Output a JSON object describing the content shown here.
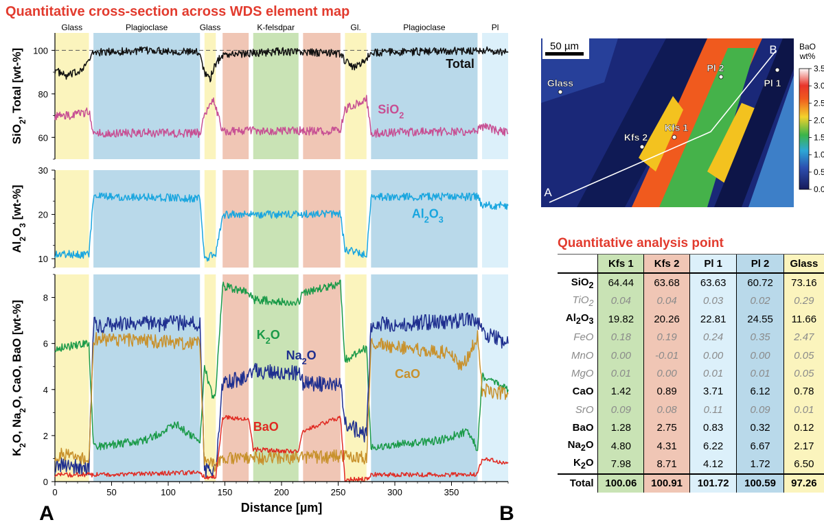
{
  "figure_title": "Quantitative cross-section across WDS element map",
  "table_title": "Quantitative analysis point",
  "colors": {
    "glass": "#fbf4bd",
    "plagioclase": "#b9d9ea",
    "kfeldspar": "#c9e3b5",
    "kfs2_band": "#f0c6b5",
    "pl1_band": "#dcf0fa",
    "total": "#111111",
    "sio2": "#c74f93",
    "al2o3": "#1aa6df",
    "k2o": "#1a9a48",
    "na2o": "#1f2f8f",
    "cao": "#c8912c",
    "bao": "#e02a22",
    "title": "#e23b2e"
  },
  "chart_data": {
    "type": "line",
    "title": "Quantitative cross-section across WDS element map",
    "xlabel": "Distance [µm]",
    "xlim": [
      0,
      400
    ],
    "xticks": [
      "0",
      "50",
      "100",
      "150",
      "200",
      "250",
      "300",
      "350"
    ],
    "xtick_values": [
      0,
      50,
      100,
      150,
      200,
      250,
      300,
      350
    ],
    "profile_start_label": "A",
    "profile_end_label": "B",
    "phase_zones": [
      {
        "label": "Glass",
        "phase": "glass",
        "x0": 0,
        "x1": 30
      },
      {
        "label": "Plagioclase",
        "phase": "plagioclase",
        "x0": 34,
        "x1": 128
      },
      {
        "label": "Glass",
        "phase": "glass",
        "x0": 132,
        "x1": 142
      },
      {
        "label": "",
        "phase": "kfs2_band",
        "x0": 148,
        "x1": 171
      },
      {
        "label": "K-felsdpar",
        "phase": "kfeldspar",
        "x0": 175,
        "x1": 215
      },
      {
        "label": "",
        "phase": "kfs2_band",
        "x0": 219,
        "x1": 252
      },
      {
        "label": "Gl.",
        "phase": "glass",
        "x0": 256,
        "x1": 275
      },
      {
        "label": "Plagioclase",
        "phase": "plagioclase",
        "x0": 279,
        "x1": 373
      },
      {
        "label": "Pl",
        "phase": "pl1_band",
        "x0": 377,
        "x1": 400
      }
    ],
    "panels": [
      {
        "id": "sio2-total",
        "ylabel": "SiO2, Total [wt-%]",
        "ylim": [
          50,
          108
        ],
        "yticks": [
          "60",
          "80",
          "100"
        ],
        "ytick_values": [
          60,
          80,
          100
        ],
        "reference_line": 100,
        "series": [
          {
            "name": "Total",
            "label": "Total",
            "color_key": "total",
            "points": [
              [
                0,
                91
              ],
              [
                10,
                88
              ],
              [
                20,
                90
              ],
              [
                30,
                95
              ],
              [
                34,
                99
              ],
              [
                60,
                99.5
              ],
              [
                90,
                100
              ],
              [
                128,
                99
              ],
              [
                132,
                90
              ],
              [
                137,
                87
              ],
              [
                142,
                94
              ],
              [
                148,
                98
              ],
              [
                200,
                99.5
              ],
              [
                252,
                98.5
              ],
              [
                256,
                95
              ],
              [
                265,
                92
              ],
              [
                275,
                96
              ],
              [
                279,
                99
              ],
              [
                330,
                99.5
              ],
              [
                373,
                100
              ],
              [
                377,
                100
              ],
              [
                400,
                99
              ]
            ],
            "noise": 1.8,
            "label_x": 345,
            "label_y": 92
          },
          {
            "name": "SiO2",
            "label": "SiO2",
            "color_key": "sio2",
            "points": [
              [
                0,
                70
              ],
              [
                15,
                70
              ],
              [
                30,
                72
              ],
              [
                34,
                62
              ],
              [
                80,
                62
              ],
              [
                128,
                62
              ],
              [
                132,
                70
              ],
              [
                140,
                78
              ],
              [
                142,
                74
              ],
              [
                148,
                63
              ],
              [
                252,
                63
              ],
              [
                256,
                73
              ],
              [
                270,
                76
              ],
              [
                275,
                78
              ],
              [
                279,
                62
              ],
              [
                373,
                63
              ],
              [
                377,
                65
              ],
              [
                400,
                62
              ]
            ],
            "noise": 2.0,
            "label_x": 285,
            "label_y": 71
          }
        ]
      },
      {
        "id": "al2o3",
        "ylabel": "Al2O3 [wt-%]",
        "ylim": [
          8,
          30
        ],
        "yticks": [
          "10",
          "20",
          "30"
        ],
        "ytick_values": [
          10,
          20,
          30
        ],
        "reference_line": null,
        "series": [
          {
            "name": "Al2O3",
            "label": "Al2O3",
            "color_key": "al2o3",
            "points": [
              [
                0,
                11
              ],
              [
                30,
                11
              ],
              [
                34,
                24
              ],
              [
                80,
                24
              ],
              [
                128,
                23.5
              ],
              [
                132,
                10
              ],
              [
                142,
                11
              ],
              [
                148,
                20
              ],
              [
                252,
                20
              ],
              [
                256,
                12
              ],
              [
                275,
                11
              ],
              [
                279,
                24
              ],
              [
                373,
                24
              ],
              [
                377,
                22
              ],
              [
                400,
                22
              ]
            ],
            "noise": 0.9,
            "label_x": 315,
            "label_y": 19.2
          }
        ]
      },
      {
        "id": "alkalis",
        "ylabel": "K2O, Na2O, CaO, BaO [wt-%]",
        "ylim": [
          0,
          9
        ],
        "yticks": [
          "0",
          "2",
          "4",
          "6",
          "8"
        ],
        "ytick_values": [
          0,
          2,
          4,
          6,
          8
        ],
        "reference_line": null,
        "series": [
          {
            "name": "K2O",
            "label": "K2O",
            "color_key": "k2o",
            "points": [
              [
                0,
                5.8
              ],
              [
                30,
                6
              ],
              [
                34,
                1.5
              ],
              [
                80,
                1.8
              ],
              [
                108,
                2.5
              ],
              [
                120,
                2
              ],
              [
                128,
                1.7
              ],
              [
                132,
                5
              ],
              [
                140,
                3.5
              ],
              [
                142,
                4
              ],
              [
                148,
                8.5
              ],
              [
                171,
                8.2
              ],
              [
                175,
                7.9
              ],
              [
                215,
                7.8
              ],
              [
                219,
                8.2
              ],
              [
                252,
                8.6
              ],
              [
                256,
                5.3
              ],
              [
                275,
                5.8
              ],
              [
                279,
                1.5
              ],
              [
                340,
                1.8
              ],
              [
                365,
                2.2
              ],
              [
                373,
                1.4
              ],
              [
                377,
                4.6
              ],
              [
                400,
                4.0
              ]
            ],
            "noise": 0.18,
            "label_x": 178,
            "label_y": 6.2
          },
          {
            "name": "Na2O",
            "label": "Na2O",
            "color_key": "na2o",
            "points": [
              [
                0,
                0.7
              ],
              [
                30,
                0.6
              ],
              [
                34,
                6.8
              ],
              [
                128,
                6.9
              ],
              [
                132,
                0.5
              ],
              [
                142,
                0.4
              ],
              [
                148,
                4.3
              ],
              [
                171,
                4.5
              ],
              [
                175,
                4.8
              ],
              [
                215,
                4.7
              ],
              [
                219,
                4.3
              ],
              [
                252,
                4.2
              ],
              [
                256,
                2.5
              ],
              [
                275,
                2.0
              ],
              [
                279,
                6.8
              ],
              [
                373,
                7.0
              ],
              [
                377,
                6.5
              ],
              [
                400,
                6.0
              ]
            ],
            "noise": 0.35,
            "label_x": 204,
            "label_y": 5.3
          },
          {
            "name": "CaO",
            "label": "CaO",
            "color_key": "cao",
            "points": [
              [
                0,
                1.2
              ],
              [
                30,
                1.0
              ],
              [
                34,
                6.2
              ],
              [
                128,
                6.0
              ],
              [
                132,
                0.8
              ],
              [
                142,
                0.7
              ],
              [
                148,
                1.0
              ],
              [
                252,
                1.1
              ],
              [
                256,
                1.2
              ],
              [
                275,
                1.0
              ],
              [
                279,
                6.0
              ],
              [
                345,
                5.6
              ],
              [
                360,
                5.0
              ],
              [
                373,
                6.3
              ],
              [
                377,
                4.0
              ],
              [
                400,
                3.8
              ]
            ],
            "noise": 0.3,
            "label_x": 300,
            "label_y": 4.5
          },
          {
            "name": "BaO",
            "label": "BaO",
            "color_key": "bao",
            "points": [
              [
                0,
                0.3
              ],
              [
                30,
                0.3
              ],
              [
                34,
                0.3
              ],
              [
                128,
                0.4
              ],
              [
                132,
                0.2
              ],
              [
                142,
                0.2
              ],
              [
                148,
                2.8
              ],
              [
                171,
                2.7
              ],
              [
                175,
                1.4
              ],
              [
                215,
                1.3
              ],
              [
                219,
                2.2
              ],
              [
                252,
                2.8
              ],
              [
                256,
                0.1
              ],
              [
                275,
                0.1
              ],
              [
                279,
                0.3
              ],
              [
                373,
                0.3
              ],
              [
                377,
                1.0
              ],
              [
                400,
                0.8
              ]
            ],
            "noise": 0.1,
            "label_x": 175,
            "label_y": 2.2
          }
        ]
      }
    ]
  },
  "map": {
    "scale_bar_label": "50 µm",
    "colorbar_title_line1": "BaO",
    "colorbar_title_line2": "wt%",
    "colorbar_ticks": [
      "0.0",
      "0.5",
      "1.0",
      "1.5",
      "2.0",
      "2.5",
      "3.0",
      "3.5"
    ],
    "colorbar_tick_values": [
      0,
      0.5,
      1.0,
      1.5,
      2.0,
      2.5,
      3.0,
      3.5
    ],
    "start_label": "A",
    "end_label": "B",
    "points": [
      {
        "label": "Glass"
      },
      {
        "label": "Kfs 2"
      },
      {
        "label": "Kfs 1"
      },
      {
        "label": "Pl 2"
      },
      {
        "label": "Pl 1"
      }
    ]
  },
  "table": {
    "columns": [
      "Kfs 1",
      "Kfs 2",
      "Pl 1",
      "Pl 2",
      "Glass"
    ],
    "rows": [
      {
        "oxide": "SiO2",
        "major": true,
        "values": [
          "64.44",
          "63.68",
          "63.63",
          "60.72",
          "73.16"
        ]
      },
      {
        "oxide": "TiO2",
        "major": false,
        "values": [
          "0.04",
          "0.04",
          "0.03",
          "0.02",
          "0.29"
        ]
      },
      {
        "oxide": "Al2O3",
        "major": true,
        "values": [
          "19.82",
          "20.26",
          "22.81",
          "24.55",
          "11.66"
        ]
      },
      {
        "oxide": "FeO",
        "major": false,
        "values": [
          "0.18",
          "0.19",
          "0.24",
          "0.35",
          "2.47"
        ]
      },
      {
        "oxide": "MnO",
        "major": false,
        "values": [
          "0.00",
          "-0.01",
          "0.00",
          "0.00",
          "0.05"
        ]
      },
      {
        "oxide": "MgO",
        "major": false,
        "values": [
          "0.01",
          "0.00",
          "0.01",
          "0.01",
          "0.05"
        ]
      },
      {
        "oxide": "CaO",
        "major": true,
        "values": [
          "1.42",
          "0.89",
          "3.71",
          "6.12",
          "0.78"
        ]
      },
      {
        "oxide": "SrO",
        "major": false,
        "values": [
          "0.09",
          "0.08",
          "0.11",
          "0.09",
          "0.01"
        ]
      },
      {
        "oxide": "BaO",
        "major": true,
        "values": [
          "1.28",
          "2.75",
          "0.83",
          "0.32",
          "0.12"
        ]
      },
      {
        "oxide": "Na2O",
        "major": true,
        "values": [
          "4.80",
          "4.31",
          "6.22",
          "6.67",
          "2.17"
        ]
      },
      {
        "oxide": "K2O",
        "major": true,
        "values": [
          "7.98",
          "8.71",
          "4.12",
          "1.72",
          "6.50"
        ]
      }
    ],
    "total_label": "Total",
    "totals": [
      "100.06",
      "100.91",
      "101.72",
      "100.59",
      "97.26"
    ]
  }
}
